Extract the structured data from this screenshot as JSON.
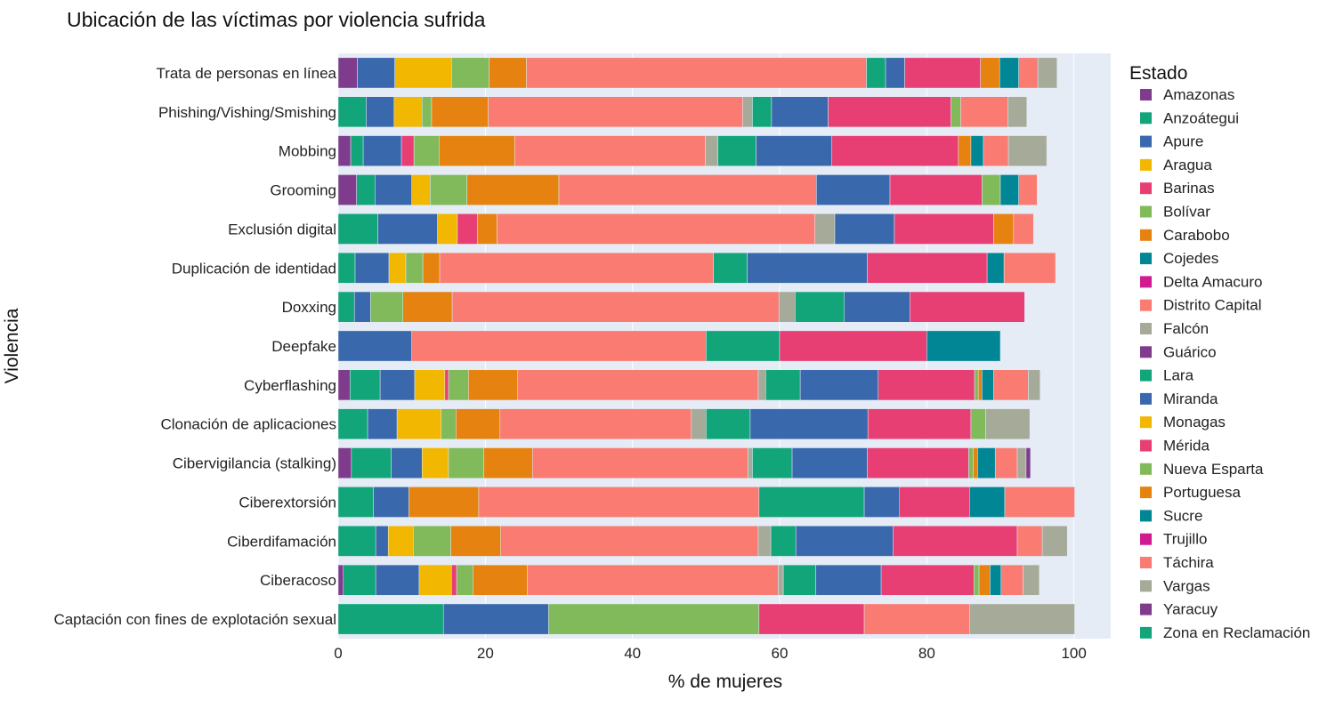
{
  "chart_data": {
    "type": "bar",
    "orientation": "horizontal",
    "stacked": true,
    "title": "Ubicación de las víctimas por violencia sufrida",
    "xlabel": "% de mujeres",
    "ylabel": "Violencia",
    "xlim": [
      0,
      105
    ],
    "xticks": [
      0,
      20,
      40,
      60,
      80,
      100
    ],
    "legend_title": "Estado",
    "legend_position": "right",
    "grid": true,
    "categories": [
      "Trata de personas en línea",
      "Phishing/Vishing/Smishing",
      "Mobbing",
      "Grooming",
      "Exclusión digital",
      "Duplicación de identidad",
      "Doxxing",
      "Deepfake",
      "Cyberflashing",
      "Clonación de aplicaciones",
      "Cibervigilancia (stalking)",
      "Ciberextorsión",
      "Ciberdifamación",
      "Ciberacoso",
      "Captación con fines de explotación sexual"
    ],
    "series": [
      {
        "name": "Amazonas",
        "color": "#7F3C8D",
        "values": [
          2.6,
          0,
          1.7,
          2.5,
          0,
          0,
          0,
          0,
          1.6,
          0,
          1.8,
          0,
          0,
          0.7,
          0
        ]
      },
      {
        "name": "Anzoátegui",
        "color": "#11A579",
        "values": [
          0,
          3.8,
          1.7,
          2.5,
          5.4,
          2.3,
          2.2,
          0,
          4.1,
          4.0,
          5.4,
          4.8,
          5.1,
          4.4,
          14.3
        ]
      },
      {
        "name": "Apure",
        "color": "#3969AC",
        "values": [
          5.1,
          3.8,
          5.2,
          5.0,
          8.1,
          4.6,
          2.2,
          10.0,
          4.7,
          4.0,
          4.2,
          4.8,
          1.7,
          5.9,
          14.3
        ]
      },
      {
        "name": "Aragua",
        "color": "#F2B701",
        "values": [
          7.7,
          3.8,
          0,
          2.5,
          2.7,
          2.3,
          0,
          0,
          4.1,
          6.0,
          3.6,
          0,
          3.4,
          4.4,
          0
        ]
      },
      {
        "name": "Barinas",
        "color": "#E73F74",
        "values": [
          0,
          0,
          1.7,
          0,
          2.7,
          0,
          0,
          0,
          0.5,
          0,
          0,
          0,
          0,
          0.7,
          0
        ]
      },
      {
        "name": "Bolívar",
        "color": "#80BA5A",
        "values": [
          5.1,
          1.3,
          3.4,
          5.0,
          0,
          2.3,
          4.4,
          0,
          2.7,
          2.0,
          4.8,
          0,
          5.1,
          2.2,
          28.6
        ]
      },
      {
        "name": "Carabobo",
        "color": "#E68310",
        "values": [
          5.1,
          7.7,
          10.3,
          12.5,
          2.7,
          2.3,
          6.7,
          0,
          6.7,
          6.0,
          6.6,
          9.5,
          6.8,
          7.4,
          0
        ]
      },
      {
        "name": "Cojedes",
        "color": "#008695",
        "values": [
          0,
          0,
          0,
          0,
          0,
          0,
          0,
          0,
          0,
          0,
          0,
          0,
          0,
          0,
          0
        ]
      },
      {
        "name": "Delta Amacuro",
        "color": "#CF1C90",
        "values": [
          0,
          0,
          0,
          0,
          0,
          0,
          0,
          0,
          0,
          0,
          0,
          0,
          0,
          0,
          0
        ]
      },
      {
        "name": "Distrito Capital",
        "color": "#F97B72",
        "values": [
          46.2,
          34.6,
          25.9,
          35.0,
          43.2,
          37.2,
          44.4,
          40.0,
          32.7,
          26.0,
          29.3,
          38.1,
          35.0,
          34.1,
          0
        ]
      },
      {
        "name": "Falcón",
        "color": "#A5AA99",
        "values": [
          0,
          1.3,
          1.7,
          0,
          2.7,
          0,
          2.2,
          0,
          1.0,
          2.0,
          0.6,
          0,
          1.7,
          0.7,
          0
        ]
      },
      {
        "name": "Guárico",
        "color": "#7F3C8D",
        "values": [
          0,
          0,
          0,
          0,
          0,
          0,
          0,
          0,
          0,
          0,
          0,
          0,
          0,
          0,
          0
        ]
      },
      {
        "name": "Lara",
        "color": "#11A579",
        "values": [
          2.6,
          2.6,
          5.2,
          0,
          0,
          4.6,
          6.7,
          10.0,
          4.7,
          6.0,
          5.4,
          14.3,
          3.4,
          4.4,
          0
        ]
      },
      {
        "name": "Miranda",
        "color": "#3969AC",
        "values": [
          2.6,
          7.7,
          10.3,
          10.0,
          8.1,
          16.3,
          8.9,
          0,
          10.6,
          16.0,
          10.2,
          4.8,
          13.2,
          8.9,
          0
        ]
      },
      {
        "name": "Monagas",
        "color": "#F2B701",
        "values": [
          0,
          0,
          0,
          0,
          0,
          0,
          0,
          0,
          0,
          0,
          0,
          0,
          0,
          0,
          0
        ]
      },
      {
        "name": "Mérida",
        "color": "#E73F74",
        "values": [
          10.3,
          16.7,
          17.2,
          12.5,
          13.5,
          16.3,
          15.6,
          20.0,
          13.1,
          14.0,
          13.8,
          9.5,
          16.9,
          12.6,
          14.3
        ]
      },
      {
        "name": "Nueva Esparta",
        "color": "#80BA5A",
        "values": [
          0,
          1.3,
          0,
          2.5,
          0,
          0,
          0,
          0,
          0.5,
          2.0,
          0.6,
          0,
          0,
          0.7,
          0
        ]
      },
      {
        "name": "Portuguesa",
        "color": "#E68310",
        "values": [
          2.6,
          0,
          1.7,
          0,
          2.7,
          0,
          0,
          0,
          0.5,
          0,
          0.6,
          0,
          0,
          1.5,
          0
        ]
      },
      {
        "name": "Sucre",
        "color": "#008695",
        "values": [
          2.6,
          0,
          1.7,
          2.5,
          0,
          2.3,
          0,
          10.0,
          1.6,
          0,
          2.4,
          4.8,
          0,
          1.5,
          0
        ]
      },
      {
        "name": "Trujillo",
        "color": "#CF1C90",
        "values": [
          0,
          0,
          0,
          0,
          0,
          0,
          0,
          0,
          0,
          0,
          0,
          0,
          0,
          0,
          0
        ]
      },
      {
        "name": "Táchira",
        "color": "#F97B72",
        "values": [
          2.6,
          6.4,
          3.4,
          2.5,
          2.7,
          7.0,
          0,
          0,
          4.7,
          0,
          3.0,
          9.5,
          3.4,
          3.0,
          14.3
        ]
      },
      {
        "name": "Vargas",
        "color": "#A5AA99",
        "values": [
          2.6,
          2.6,
          5.2,
          0,
          0,
          0,
          0,
          0,
          1.6,
          6.0,
          1.2,
          0,
          3.4,
          2.2,
          14.3
        ]
      },
      {
        "name": "Yaracuy",
        "color": "#7F3C8D",
        "values": [
          0,
          0,
          0,
          0,
          0,
          0,
          0,
          0,
          0,
          0,
          0.6,
          0,
          0,
          0,
          0
        ]
      },
      {
        "name": "Zona en Reclamación",
        "color": "#11A579",
        "values": [
          0,
          0,
          0,
          0,
          0,
          0,
          0,
          0,
          0,
          0,
          0,
          0,
          0,
          0,
          0
        ]
      }
    ]
  }
}
